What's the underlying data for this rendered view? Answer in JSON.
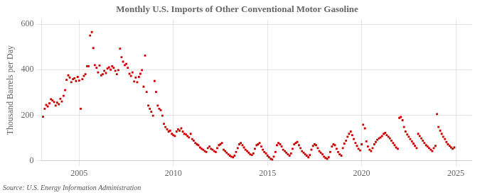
{
  "chart_data": {
    "type": "scatter",
    "title": "Monthly U.S. Imports of Other Conventional Motor Gasoline",
    "ylabel": "Thousand Barrels per Day",
    "annotations": [
      "Source: U.S. Energy Information Administration"
    ],
    "color": "#cc0000",
    "marker": "square",
    "grid": true,
    "xlim": [
      2003.0,
      2025.83
    ],
    "xticks": [
      2005,
      2010,
      2015,
      2020,
      2025
    ],
    "ylim": [
      0,
      620
    ],
    "yticks": [
      0,
      200,
      400,
      600
    ],
    "x": [
      2003.08,
      2003.17,
      2003.25,
      2003.33,
      2003.42,
      2003.5,
      2003.58,
      2003.67,
      2003.75,
      2003.83,
      2003.92,
      2004.0,
      2004.08,
      2004.17,
      2004.25,
      2004.33,
      2004.42,
      2004.5,
      2004.58,
      2004.67,
      2004.75,
      2004.83,
      2004.92,
      2005.0,
      2005.08,
      2005.17,
      2005.25,
      2005.33,
      2005.42,
      2005.5,
      2005.58,
      2005.67,
      2005.75,
      2005.83,
      2005.92,
      2006.0,
      2006.08,
      2006.17,
      2006.25,
      2006.33,
      2006.42,
      2006.5,
      2006.58,
      2006.67,
      2006.75,
      2006.83,
      2006.92,
      2007.0,
      2007.08,
      2007.17,
      2007.25,
      2007.33,
      2007.42,
      2007.5,
      2007.58,
      2007.67,
      2007.75,
      2007.83,
      2007.92,
      2008.0,
      2008.08,
      2008.17,
      2008.25,
      2008.33,
      2008.42,
      2008.5,
      2008.58,
      2008.67,
      2008.75,
      2008.83,
      2008.92,
      2009.0,
      2009.08,
      2009.17,
      2009.25,
      2009.33,
      2009.42,
      2009.5,
      2009.58,
      2009.67,
      2009.75,
      2009.83,
      2009.92,
      2010.0,
      2010.08,
      2010.17,
      2010.25,
      2010.33,
      2010.42,
      2010.5,
      2010.58,
      2010.67,
      2010.75,
      2010.83,
      2010.92,
      2011.0,
      2011.08,
      2011.17,
      2011.25,
      2011.33,
      2011.42,
      2011.5,
      2011.58,
      2011.67,
      2011.75,
      2011.83,
      2011.92,
      2012.0,
      2012.08,
      2012.17,
      2012.25,
      2012.33,
      2012.42,
      2012.5,
      2012.58,
      2012.67,
      2012.75,
      2012.83,
      2012.92,
      2013.0,
      2013.08,
      2013.17,
      2013.25,
      2013.33,
      2013.42,
      2013.5,
      2013.58,
      2013.67,
      2013.75,
      2013.83,
      2013.92,
      2014.0,
      2014.08,
      2014.17,
      2014.25,
      2014.33,
      2014.42,
      2014.5,
      2014.58,
      2014.67,
      2014.75,
      2014.83,
      2014.92,
      2015.0,
      2015.08,
      2015.17,
      2015.25,
      2015.33,
      2015.42,
      2015.5,
      2015.58,
      2015.67,
      2015.75,
      2015.83,
      2015.92,
      2016.0,
      2016.08,
      2016.17,
      2016.25,
      2016.33,
      2016.42,
      2016.5,
      2016.58,
      2016.67,
      2016.75,
      2016.83,
      2016.92,
      2017.0,
      2017.08,
      2017.17,
      2017.25,
      2017.33,
      2017.42,
      2017.5,
      2017.58,
      2017.67,
      2017.75,
      2017.83,
      2017.92,
      2018.0,
      2018.08,
      2018.17,
      2018.25,
      2018.33,
      2018.42,
      2018.5,
      2018.58,
      2018.67,
      2018.75,
      2018.83,
      2018.92,
      2019.0,
      2019.08,
      2019.17,
      2019.25,
      2019.33,
      2019.42,
      2019.5,
      2019.58,
      2019.67,
      2019.75,
      2019.83,
      2019.92,
      2020.0,
      2020.08,
      2020.17,
      2020.25,
      2020.33,
      2020.42,
      2020.5,
      2020.58,
      2020.67,
      2020.75,
      2020.83,
      2020.92,
      2021.0,
      2021.08,
      2021.17,
      2021.25,
      2021.33,
      2021.42,
      2021.5,
      2021.58,
      2021.67,
      2021.75,
      2021.83,
      2021.92,
      2022.0,
      2022.08,
      2022.17,
      2022.25,
      2022.33,
      2022.42,
      2022.5,
      2022.58,
      2022.67,
      2022.75,
      2022.83,
      2022.92,
      2023.0,
      2023.08,
      2023.17,
      2023.25,
      2023.33,
      2023.42,
      2023.5,
      2023.58,
      2023.67,
      2023.75,
      2023.83,
      2023.92,
      2024.0,
      2024.08,
      2024.17,
      2024.25,
      2024.33,
      2024.42,
      2024.5,
      2024.58,
      2024.67,
      2024.75,
      2024.83,
      2024.92
    ],
    "values": [
      193,
      228,
      245,
      238,
      252,
      270,
      265,
      258,
      242,
      255,
      248,
      272,
      260,
      285,
      310,
      355,
      375,
      365,
      345,
      358,
      362,
      350,
      368,
      352,
      228,
      358,
      372,
      380,
      415,
      415,
      550,
      565,
      495,
      420,
      408,
      388,
      418,
      375,
      380,
      395,
      385,
      405,
      410,
      400,
      415,
      408,
      395,
      380,
      398,
      492,
      455,
      435,
      420,
      425,
      408,
      382,
      372,
      388,
      348,
      365,
      345,
      368,
      382,
      398,
      325,
      462,
      302,
      242,
      228,
      215,
      198,
      350,
      302,
      242,
      228,
      222,
      198,
      162,
      148,
      138,
      128,
      132,
      118,
      112,
      108,
      128,
      138,
      132,
      142,
      128,
      118,
      115,
      108,
      102,
      118,
      95,
      88,
      78,
      72,
      68,
      58,
      52,
      48,
      42,
      38,
      55,
      62,
      52,
      48,
      42,
      38,
      55,
      68,
      72,
      78,
      48,
      42,
      35,
      28,
      22,
      18,
      15,
      22,
      38,
      55,
      72,
      78,
      68,
      58,
      48,
      42,
      35,
      28,
      25,
      32,
      52,
      68,
      72,
      78,
      62,
      48,
      38,
      32,
      22,
      15,
      8,
      5,
      18,
      38,
      68,
      78,
      72,
      62,
      48,
      42,
      35,
      28,
      22,
      32,
      52,
      72,
      78,
      82,
      68,
      55,
      42,
      35,
      28,
      22,
      15,
      25,
      48,
      65,
      72,
      68,
      55,
      42,
      35,
      28,
      18,
      12,
      8,
      15,
      38,
      62,
      72,
      68,
      52,
      38,
      28,
      22,
      55,
      75,
      88,
      105,
      118,
      128,
      112,
      95,
      78,
      65,
      52,
      45,
      72,
      158,
      142,
      85,
      62,
      48,
      42,
      55,
      72,
      82,
      92,
      98,
      102,
      108,
      118,
      122,
      112,
      105,
      98,
      88,
      78,
      68,
      58,
      52,
      188,
      192,
      178,
      148,
      128,
      115,
      105,
      95,
      85,
      75,
      65,
      55,
      118,
      108,
      98,
      88,
      78,
      68,
      62,
      55,
      48,
      42,
      55,
      65,
      205,
      148,
      132,
      118,
      105,
      95,
      82,
      72,
      65,
      58,
      52,
      58
    ]
  }
}
